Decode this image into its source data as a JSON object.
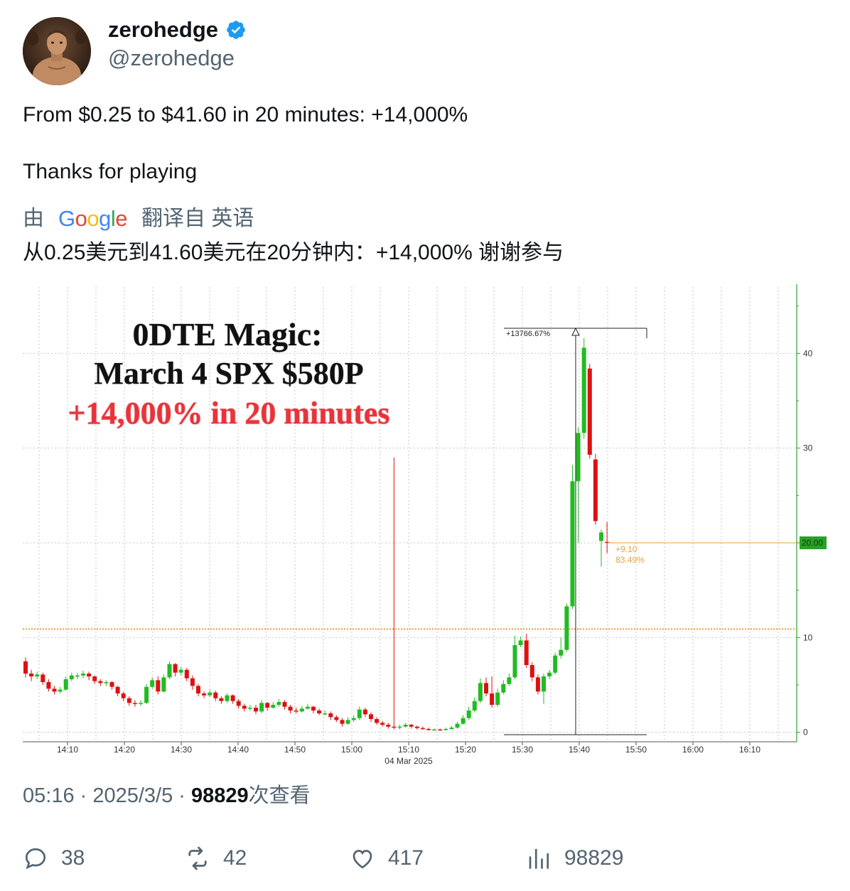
{
  "colors": {
    "verified": "#1d9bf0",
    "up": "#22bb22",
    "down": "#dd1111",
    "accent_orange": "#e8a13a",
    "axis_green": "#2aa02a",
    "headline_red": "#e8333a"
  },
  "author": {
    "display_name": "zerohedge",
    "handle": "@zerohedge",
    "avatar_icon": "avatar-icon",
    "verified_icon": "verified-badge-icon"
  },
  "tweet": {
    "line1": "From $0.25 to $41.60 in 20 minutes: +14,000%",
    "line2": "Thanks for playing"
  },
  "translation": {
    "by": "由",
    "google": "Google",
    "translated_from": "翻译自 英语",
    "text": "从0.25美元到41.60美元在20分钟内：+14,000% 谢谢参与"
  },
  "chart_data": {
    "type": "candlestick",
    "title_lines": [
      "0DTE Magic:",
      "March 4 SPX $580P",
      "+14,000% in 20 minutes"
    ],
    "x_ticks": [
      "14:10",
      "14:20",
      "14:30",
      "14:40",
      "14:50",
      "15:00",
      "15:10",
      "15:20",
      "15:30",
      "15:40",
      "15:50",
      "16:00",
      "16:10"
    ],
    "x_date_label": "04 Mar 2025",
    "y_ticks": [
      "0",
      "10",
      "20",
      "30",
      "40"
    ],
    "ylim": [
      -1,
      47
    ],
    "last_price_label": "20.00",
    "measure_label": "+13766.67%",
    "change_label": "+9.10",
    "change_pct_label": "83.49%",
    "grid": true,
    "orange_dotted_level": 10.9,
    "candles": [
      {
        "o": 7.5,
        "c": 6.2,
        "h": 7.9,
        "l": 5.8
      },
      {
        "o": 6.2,
        "c": 5.9,
        "h": 6.6,
        "l": 5.4
      },
      {
        "o": 5.9,
        "c": 6.1,
        "h": 6.4,
        "l": 5.6
      },
      {
        "o": 6.1,
        "c": 5.3,
        "h": 6.3,
        "l": 5.0
      },
      {
        "o": 5.3,
        "c": 4.6,
        "h": 5.6,
        "l": 4.3
      },
      {
        "o": 4.6,
        "c": 4.3,
        "h": 4.9,
        "l": 4.0
      },
      {
        "o": 4.3,
        "c": 4.5,
        "h": 4.8,
        "l": 4.1
      },
      {
        "o": 4.5,
        "c": 5.6,
        "h": 5.9,
        "l": 4.4
      },
      {
        "o": 5.6,
        "c": 6.0,
        "h": 6.3,
        "l": 5.4
      },
      {
        "o": 6.0,
        "c": 6.0,
        "h": 6.3,
        "l": 5.6
      },
      {
        "o": 6.0,
        "c": 6.2,
        "h": 6.5,
        "l": 5.7
      },
      {
        "o": 6.2,
        "c": 5.9,
        "h": 6.4,
        "l": 5.5
      },
      {
        "o": 5.9,
        "c": 5.4,
        "h": 6.0,
        "l": 5.1
      },
      {
        "o": 5.4,
        "c": 5.2,
        "h": 5.6,
        "l": 4.9
      },
      {
        "o": 5.2,
        "c": 5.3,
        "h": 5.5,
        "l": 4.9
      },
      {
        "o": 5.3,
        "c": 4.8,
        "h": 5.4,
        "l": 4.5
      },
      {
        "o": 4.8,
        "c": 4.1,
        "h": 4.9,
        "l": 3.8
      },
      {
        "o": 4.1,
        "c": 3.6,
        "h": 4.3,
        "l": 3.3
      },
      {
        "o": 3.6,
        "c": 3.1,
        "h": 3.8,
        "l": 2.8
      },
      {
        "o": 3.1,
        "c": 3.0,
        "h": 3.4,
        "l": 2.7
      },
      {
        "o": 3.0,
        "c": 3.1,
        "h": 3.4,
        "l": 2.8
      },
      {
        "o": 3.1,
        "c": 4.8,
        "h": 5.1,
        "l": 3.0
      },
      {
        "o": 4.8,
        "c": 5.5,
        "h": 5.8,
        "l": 4.6
      },
      {
        "o": 5.5,
        "c": 4.3,
        "h": 5.9,
        "l": 4.0
      },
      {
        "o": 4.3,
        "c": 5.8,
        "h": 6.1,
        "l": 4.2
      },
      {
        "o": 5.8,
        "c": 7.2,
        "h": 7.5,
        "l": 5.6
      },
      {
        "o": 7.2,
        "c": 6.3,
        "h": 7.3,
        "l": 5.9
      },
      {
        "o": 6.3,
        "c": 6.6,
        "h": 6.9,
        "l": 6.0
      },
      {
        "o": 6.6,
        "c": 5.7,
        "h": 6.8,
        "l": 5.4
      },
      {
        "o": 5.7,
        "c": 4.9,
        "h": 6.0,
        "l": 4.5
      },
      {
        "o": 4.9,
        "c": 4.1,
        "h": 5.1,
        "l": 3.8
      },
      {
        "o": 4.1,
        "c": 3.9,
        "h": 4.3,
        "l": 3.6
      },
      {
        "o": 3.9,
        "c": 4.2,
        "h": 4.5,
        "l": 3.7
      },
      {
        "o": 4.2,
        "c": 3.6,
        "h": 4.4,
        "l": 3.3
      },
      {
        "o": 3.6,
        "c": 3.3,
        "h": 3.8,
        "l": 3.0
      },
      {
        "o": 3.3,
        "c": 3.9,
        "h": 4.1,
        "l": 3.1
      },
      {
        "o": 3.9,
        "c": 3.3,
        "h": 4.0,
        "l": 3.0
      },
      {
        "o": 3.3,
        "c": 2.8,
        "h": 3.5,
        "l": 2.5
      },
      {
        "o": 2.8,
        "c": 2.5,
        "h": 3.0,
        "l": 2.2
      },
      {
        "o": 2.5,
        "c": 2.6,
        "h": 2.9,
        "l": 2.3
      },
      {
        "o": 2.6,
        "c": 2.2,
        "h": 2.9,
        "l": 1.9
      },
      {
        "o": 2.2,
        "c": 3.1,
        "h": 3.4,
        "l": 2.0
      },
      {
        "o": 3.1,
        "c": 2.6,
        "h": 3.2,
        "l": 2.3
      },
      {
        "o": 2.6,
        "c": 2.9,
        "h": 3.2,
        "l": 2.5
      },
      {
        "o": 2.9,
        "c": 3.2,
        "h": 3.5,
        "l": 2.7
      },
      {
        "o": 3.2,
        "c": 2.7,
        "h": 3.4,
        "l": 2.4
      },
      {
        "o": 2.7,
        "c": 2.3,
        "h": 2.9,
        "l": 2.0
      },
      {
        "o": 2.3,
        "c": 2.2,
        "h": 2.6,
        "l": 2.0
      },
      {
        "o": 2.2,
        "c": 2.5,
        "h": 2.8,
        "l": 2.1
      },
      {
        "o": 2.5,
        "c": 2.7,
        "h": 3.0,
        "l": 2.4
      },
      {
        "o": 2.7,
        "c": 2.3,
        "h": 2.8,
        "l": 2.0
      },
      {
        "o": 2.3,
        "c": 2.0,
        "h": 2.5,
        "l": 1.8
      },
      {
        "o": 2.0,
        "c": 2.0,
        "h": 2.3,
        "l": 1.8
      },
      {
        "o": 2.0,
        "c": 1.6,
        "h": 2.2,
        "l": 1.3
      },
      {
        "o": 1.6,
        "c": 1.3,
        "h": 1.8,
        "l": 1.1
      },
      {
        "o": 1.3,
        "c": 0.9,
        "h": 1.5,
        "l": 0.6
      },
      {
        "o": 0.9,
        "c": 1.3,
        "h": 1.6,
        "l": 0.8
      },
      {
        "o": 1.3,
        "c": 1.5,
        "h": 1.8,
        "l": 1.1
      },
      {
        "o": 1.5,
        "c": 2.4,
        "h": 2.7,
        "l": 1.3
      },
      {
        "o": 2.4,
        "c": 1.9,
        "h": 2.6,
        "l": 1.6
      },
      {
        "o": 1.9,
        "c": 1.4,
        "h": 2.1,
        "l": 1.1
      },
      {
        "o": 1.4,
        "c": 1.0,
        "h": 1.6,
        "l": 0.8
      },
      {
        "o": 1.0,
        "c": 0.8,
        "h": 1.2,
        "l": 0.6
      },
      {
        "o": 0.8,
        "c": 0.6,
        "h": 1.0,
        "l": 0.4
      },
      {
        "o": 0.6,
        "c": 0.5,
        "h": 29.0,
        "l": 0.3
      },
      {
        "o": 0.5,
        "c": 0.6,
        "h": 0.8,
        "l": 0.3
      },
      {
        "o": 0.6,
        "c": 0.8,
        "h": 1.0,
        "l": 0.5
      },
      {
        "o": 0.8,
        "c": 0.6,
        "h": 0.9,
        "l": 0.4
      },
      {
        "o": 0.6,
        "c": 0.45,
        "h": 0.7,
        "l": 0.3
      },
      {
        "o": 0.45,
        "c": 0.35,
        "h": 0.6,
        "l": 0.25
      },
      {
        "o": 0.35,
        "c": 0.3,
        "h": 0.5,
        "l": 0.2
      },
      {
        "o": 0.3,
        "c": 0.3,
        "h": 0.4,
        "l": 0.2
      },
      {
        "o": 0.3,
        "c": 0.25,
        "h": 0.4,
        "l": 0.2
      },
      {
        "o": 0.25,
        "c": 0.35,
        "h": 0.5,
        "l": 0.2
      },
      {
        "o": 0.35,
        "c": 0.5,
        "h": 0.7,
        "l": 0.3
      },
      {
        "o": 0.5,
        "c": 0.9,
        "h": 1.1,
        "l": 0.4
      },
      {
        "o": 0.9,
        "c": 1.5,
        "h": 1.8,
        "l": 0.8
      },
      {
        "o": 1.5,
        "c": 2.3,
        "h": 2.7,
        "l": 1.3
      },
      {
        "o": 2.3,
        "c": 3.3,
        "h": 3.7,
        "l": 2.1
      },
      {
        "o": 3.3,
        "c": 5.2,
        "h": 5.7,
        "l": 3.1
      },
      {
        "o": 5.2,
        "c": 4.1,
        "h": 5.8,
        "l": 3.8
      },
      {
        "o": 4.1,
        "c": 2.9,
        "h": 5.9,
        "l": 2.6
      },
      {
        "o": 2.9,
        "c": 4.2,
        "h": 4.6,
        "l": 2.7
      },
      {
        "o": 4.2,
        "c": 5.1,
        "h": 5.5,
        "l": 4.0
      },
      {
        "o": 5.1,
        "c": 5.8,
        "h": 6.2,
        "l": 4.9
      },
      {
        "o": 5.8,
        "c": 9.2,
        "h": 10.2,
        "l": 5.6
      },
      {
        "o": 9.2,
        "c": 9.7,
        "h": 10.1,
        "l": 9.0
      },
      {
        "o": 9.7,
        "c": 7.1,
        "h": 10.4,
        "l": 6.8
      },
      {
        "o": 7.1,
        "c": 5.8,
        "h": 7.4,
        "l": 5.4
      },
      {
        "o": 5.8,
        "c": 4.3,
        "h": 6.1,
        "l": 4.0
      },
      {
        "o": 4.3,
        "c": 5.9,
        "h": 6.2,
        "l": 3.0
      },
      {
        "o": 5.9,
        "c": 6.3,
        "h": 6.6,
        "l": 5.6
      },
      {
        "o": 6.3,
        "c": 8.1,
        "h": 8.4,
        "l": 6.1
      },
      {
        "o": 8.1,
        "c": 8.7,
        "h": 10.0,
        "l": 7.8
      },
      {
        "o": 8.7,
        "c": 13.3,
        "h": 13.6,
        "l": 8.5
      },
      {
        "o": 13.3,
        "c": 26.5,
        "h": 28.2,
        "l": 13.0
      },
      {
        "o": 26.5,
        "c": 31.6,
        "h": 32.2,
        "l": 20.0
      },
      {
        "o": 31.6,
        "c": 40.6,
        "h": 41.6,
        "l": 31.0
      },
      {
        "o": 38.4,
        "c": 29.3,
        "h": 38.9,
        "l": 28.9
      },
      {
        "o": 28.8,
        "c": 22.3,
        "h": 29.4,
        "l": 21.9
      },
      {
        "o": 20.2,
        "c": 21.1,
        "h": 21.4,
        "l": 17.5
      },
      {
        "o": 20.1,
        "c": 20.0,
        "h": 22.2,
        "l": 18.9
      }
    ]
  },
  "meta": {
    "time_date": "05:16 · 2025/3/5 · ",
    "views_count": "98829",
    "views_suffix": "次查看"
  },
  "actions": {
    "replies": "38",
    "retweets": "42",
    "likes": "417",
    "views": "98829"
  }
}
